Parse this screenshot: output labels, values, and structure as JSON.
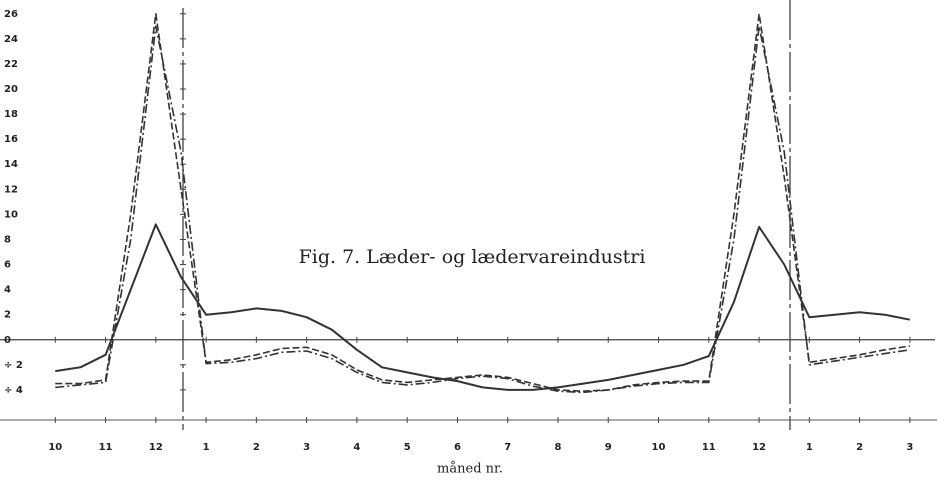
{
  "chart_data": {
    "type": "line",
    "title": "Fig. 7. Læder- og lædervareindustri",
    "xlabel": "måned nr.",
    "x": [
      0,
      0.5,
      1,
      1.5,
      2,
      2.5,
      3,
      3.5,
      4,
      4.5,
      5,
      5.5,
      6,
      6.5,
      7,
      7.5,
      8,
      8.5,
      9,
      9.5,
      10,
      10.5,
      11,
      11.5,
      12,
      12.5,
      13,
      13.5,
      14,
      14.5,
      15,
      15.5,
      16,
      16.5,
      17
    ],
    "xlim": [
      -1.1,
      17.5
    ],
    "xticks": [
      {
        "value": 0,
        "label": "10"
      },
      {
        "value": 1,
        "label": "11"
      },
      {
        "value": 2,
        "label": "12"
      },
      {
        "value": 3,
        "label": "1"
      },
      {
        "value": 4,
        "label": "2"
      },
      {
        "value": 5,
        "label": "3"
      },
      {
        "value": 6,
        "label": "4"
      },
      {
        "value": 7,
        "label": "5"
      },
      {
        "value": 8,
        "label": "6"
      },
      {
        "value": 9,
        "label": "7"
      },
      {
        "value": 10,
        "label": "8"
      },
      {
        "value": 11,
        "label": "9"
      },
      {
        "value": 12,
        "label": "10"
      },
      {
        "value": 13,
        "label": "11"
      },
      {
        "value": 14,
        "label": "12"
      },
      {
        "value": 15,
        "label": "1"
      },
      {
        "value": 16,
        "label": "2"
      },
      {
        "value": 17,
        "label": "3"
      }
    ],
    "ylim": [
      -6.4,
      27.1
    ],
    "yticks": [
      26,
      24,
      22,
      20,
      18,
      16,
      14,
      12,
      10,
      8,
      6,
      4,
      2,
      0,
      {
        "value": -2,
        "label": "÷ 2"
      },
      {
        "value": -4,
        "label": "÷ 4"
      }
    ],
    "grid": false,
    "series": [
      {
        "color": "#333333",
        "style": "solid",
        "values": [
          -2.5,
          -2.2,
          -1.2,
          4,
          9.2,
          5,
          2,
          2.2,
          2.5,
          2.3,
          1.8,
          0.8,
          -0.8,
          -2.2,
          -2.6,
          -3,
          -3.3,
          -3.8,
          -4,
          -4,
          -3.8,
          -3.5,
          -3.2,
          -2.8,
          -2.4,
          -2,
          -1.3,
          3,
          9,
          6,
          1.8,
          2,
          2.2,
          2,
          1.6
        ]
      },
      {
        "color": "#333333",
        "style": "dashed",
        "values": [
          -3.5,
          -3.5,
          -3.2,
          10,
          26,
          12,
          -1.8,
          -1.6,
          -1.2,
          -0.7,
          -0.6,
          -1.2,
          -2.4,
          -3.2,
          -3.4,
          -3.2,
          -3,
          -2.8,
          -3,
          -3.5,
          -4,
          -4.1,
          -4,
          -3.6,
          -3.4,
          -3.3,
          -3.3,
          10,
          26,
          13,
          -1.8,
          -1.5,
          -1.2,
          -0.8,
          -0.5
        ]
      },
      {
        "color": "#333333",
        "style": "dashdot",
        "values": [
          -3.8,
          -3.6,
          -3.4,
          8,
          25,
          15,
          -1.9,
          -1.8,
          -1.5,
          -1,
          -0.9,
          -1.5,
          -2.6,
          -3.4,
          -3.6,
          -3.4,
          -3.1,
          -2.9,
          -3.1,
          -3.7,
          -4.1,
          -4.2,
          -4,
          -3.7,
          -3.5,
          -3.4,
          -3.4,
          8,
          25,
          15,
          -2,
          -1.7,
          -1.4,
          -1.1,
          -0.8
        ]
      }
    ]
  }
}
